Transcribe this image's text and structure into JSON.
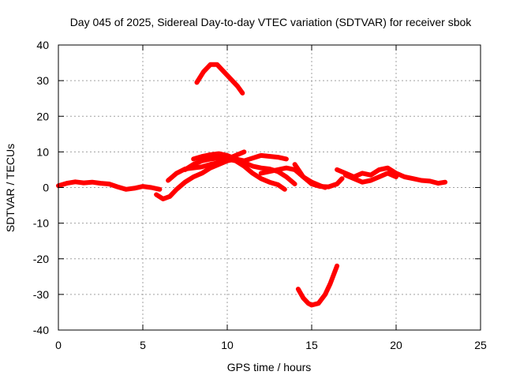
{
  "chart_data": {
    "type": "line",
    "title": "Day 045 of 2025, Sidereal Day-to-day VTEC variation (SDTVAR) for receiver sbok",
    "xlabel": "GPS time / hours",
    "ylabel": "SDTVAR / TECUs",
    "xlim": [
      0,
      25
    ],
    "ylim": [
      -40,
      40
    ],
    "xticks": [
      0,
      5,
      10,
      15,
      20,
      25
    ],
    "yticks": [
      -40,
      -30,
      -20,
      -10,
      0,
      10,
      20,
      30,
      40
    ],
    "grid": true,
    "legend": "none",
    "series_color": "#ff0000",
    "series": [
      {
        "name": "s1",
        "x": [
          0.0,
          0.5,
          1.0,
          1.5,
          2.0,
          2.5,
          3.0,
          3.5,
          4.0,
          4.5,
          5.0,
          5.5,
          6.0
        ],
        "y": [
          0.5,
          1.2,
          1.6,
          1.3,
          1.5,
          1.2,
          1.0,
          0.2,
          -0.5,
          -0.2,
          0.3,
          0.0,
          -0.5
        ]
      },
      {
        "name": "s2",
        "x": [
          5.8,
          6.2,
          6.6,
          7.0,
          7.5,
          8.0,
          8.5,
          9.0,
          9.5,
          10.0,
          10.5
        ],
        "y": [
          -2.0,
          -3.2,
          -2.5,
          -0.5,
          1.5,
          3.0,
          4.0,
          5.5,
          6.5,
          7.5,
          8.0
        ]
      },
      {
        "name": "s3",
        "x": [
          6.5,
          7.0,
          7.5,
          8.0,
          8.5,
          9.0,
          9.5,
          10.0,
          10.5,
          11.0
        ],
        "y": [
          2.0,
          4.0,
          5.2,
          5.5,
          5.8,
          6.5,
          7.0,
          8.0,
          9.0,
          10.0
        ]
      },
      {
        "name": "s4",
        "x": [
          8.0,
          8.5,
          9.0,
          9.5,
          10.0,
          10.5,
          11.0,
          11.5,
          12.0,
          12.5,
          13.0,
          13.5,
          14.0
        ],
        "y": [
          8.0,
          8.7,
          9.2,
          9.5,
          9.0,
          8.0,
          7.0,
          6.0,
          5.5,
          5.2,
          4.5,
          3.0,
          1.0
        ]
      },
      {
        "name": "s5",
        "x": [
          7.5,
          8.0,
          8.5,
          9.0,
          9.5,
          10.0,
          10.5,
          11.0,
          11.5,
          12.0,
          12.5,
          13.0,
          13.4
        ],
        "y": [
          5.0,
          6.5,
          7.5,
          8.0,
          8.5,
          8.0,
          7.5,
          6.0,
          4.0,
          2.5,
          1.5,
          0.8,
          -0.5
        ]
      },
      {
        "name": "s6",
        "x": [
          9.0,
          10.0,
          11.0,
          12.0,
          13.0,
          13.5
        ],
        "y": [
          8.0,
          8.5,
          7.5,
          9.0,
          8.5,
          8.0
        ]
      },
      {
        "name": "s7",
        "x": [
          8.2,
          8.6,
          9.0,
          9.4,
          9.8,
          10.2,
          10.6,
          10.9
        ],
        "y": [
          29.5,
          32.5,
          34.5,
          34.5,
          32.5,
          30.5,
          28.5,
          26.5
        ]
      },
      {
        "name": "s8",
        "x": [
          14.0,
          14.5,
          15.0,
          15.5,
          16.0,
          16.5,
          16.8
        ],
        "y": [
          6.5,
          3.0,
          1.0,
          0.3,
          0.2,
          1.0,
          2.5
        ]
      },
      {
        "name": "s9",
        "x": [
          12.0,
          12.5,
          13.0,
          13.5,
          14.0,
          14.5,
          15.0,
          15.5,
          15.8
        ],
        "y": [
          4.0,
          4.5,
          5.0,
          5.5,
          5.0,
          3.0,
          1.5,
          0.5,
          0.0
        ]
      },
      {
        "name": "s10",
        "x": [
          14.2,
          14.5,
          14.8,
          15.0,
          15.4,
          15.8,
          16.1,
          16.5
        ],
        "y": [
          -28.5,
          -31.0,
          -32.5,
          -33.0,
          -32.5,
          -30.0,
          -27.0,
          -22.0
        ]
      },
      {
        "name": "s11",
        "x": [
          16.5,
          17.0,
          17.5,
          18.0,
          18.5,
          19.0,
          19.5,
          20.0,
          20.5,
          21.0,
          21.5,
          22.0,
          22.5,
          22.9
        ],
        "y": [
          5.0,
          4.0,
          3.0,
          4.0,
          3.5,
          5.0,
          5.5,
          4.0,
          3.0,
          2.5,
          2.0,
          1.8,
          1.2,
          1.5
        ]
      },
      {
        "name": "s12",
        "x": [
          17.0,
          17.5,
          18.0,
          18.5,
          19.0,
          19.5,
          20.0
        ],
        "y": [
          3.5,
          2.5,
          1.5,
          2.0,
          3.0,
          4.0,
          3.0
        ]
      }
    ]
  }
}
